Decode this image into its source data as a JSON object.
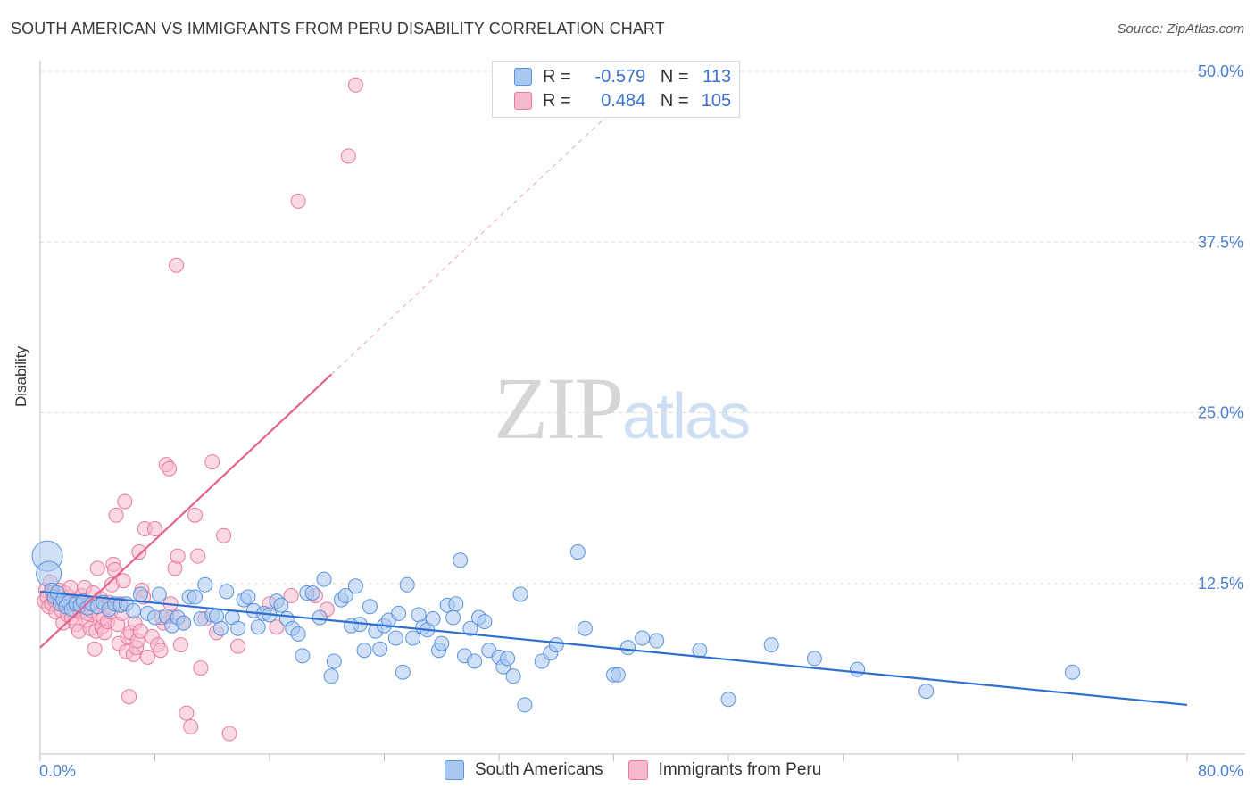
{
  "title": "SOUTH AMERICAN VS IMMIGRANTS FROM PERU DISABILITY CORRELATION CHART",
  "source": "Source: ZipAtlas.com",
  "watermark": {
    "zip": "ZIP",
    "atlas": "atlas"
  },
  "legend_top": {
    "rows": [
      {
        "r_label": "R =",
        "r_value": "-0.579",
        "n_label": "N =",
        "n_value": "113",
        "color": "#a9c8f0"
      },
      {
        "r_label": "R =",
        "r_value": "0.484",
        "n_label": "N =",
        "n_value": "105",
        "color": "#f7b9cc"
      }
    ]
  },
  "legend_bottom": [
    {
      "label": "South Americans",
      "color": "#a9c8f0"
    },
    {
      "label": "Immigrants from Peru",
      "color": "#f7b9cc"
    }
  ],
  "colors": {
    "blue_fill": "#a9c8f0",
    "blue_stroke": "#5b93dc",
    "blue_line": "#2f6fcf",
    "pink_fill": "#f7b9cc",
    "pink_stroke": "#e6799c",
    "pink_line": "#e4628d",
    "grid": "#dcdcdc",
    "axis_label": "#4a7fcf"
  },
  "chart_data": {
    "type": "scatter",
    "title": "SOUTH AMERICAN VS IMMIGRANTS FROM PERU DISABILITY CORRELATION CHART",
    "xlabel": "",
    "ylabel": "Disability",
    "xlim": [
      0,
      80
    ],
    "ylim": [
      0,
      50
    ],
    "x_tick_labels": [
      "0.0%",
      "80.0%"
    ],
    "y_tick_labels": [
      "12.5%",
      "25.0%",
      "37.5%",
      "50.0%"
    ],
    "y_ticks": [
      12.5,
      25,
      37.5,
      50
    ],
    "grid": true,
    "series": [
      {
        "name": "South Americans",
        "r": -0.579,
        "n": 113,
        "trend": {
          "x": [
            0,
            80
          ],
          "y": [
            11.9,
            3.6
          ]
        },
        "points": [
          [
            0.5,
            14.5
          ],
          [
            0.6,
            13.2
          ],
          [
            0.8,
            12.0
          ],
          [
            1.0,
            11.5
          ],
          [
            1.2,
            11.8
          ],
          [
            1.4,
            11.0
          ],
          [
            1.6,
            11.3
          ],
          [
            1.8,
            10.8
          ],
          [
            2.0,
            11.1
          ],
          [
            2.2,
            10.6
          ],
          [
            2.5,
            11.0
          ],
          [
            2.8,
            10.9
          ],
          [
            3.0,
            11.2
          ],
          [
            3.3,
            10.7
          ],
          [
            3.6,
            11.0
          ],
          [
            4.0,
            10.8
          ],
          [
            4.4,
            11.1
          ],
          [
            4.8,
            10.6
          ],
          [
            5.2,
            11.0
          ],
          [
            5.6,
            10.9
          ],
          [
            6.0,
            11.0
          ],
          [
            6.5,
            10.5
          ],
          [
            7.0,
            11.7
          ],
          [
            7.5,
            10.3
          ],
          [
            8.0,
            10.0
          ],
          [
            8.3,
            11.7
          ],
          [
            8.8,
            10.1
          ],
          [
            9.2,
            9.4
          ],
          [
            9.6,
            10.0
          ],
          [
            10.0,
            9.6
          ],
          [
            10.4,
            11.5
          ],
          [
            10.8,
            11.5
          ],
          [
            11.2,
            9.9
          ],
          [
            11.5,
            12.4
          ],
          [
            12.0,
            10.2
          ],
          [
            12.3,
            10.1
          ],
          [
            12.6,
            9.2
          ],
          [
            13.0,
            11.9
          ],
          [
            13.4,
            10.0
          ],
          [
            13.8,
            9.2
          ],
          [
            14.2,
            11.3
          ],
          [
            14.5,
            11.5
          ],
          [
            14.9,
            10.5
          ],
          [
            15.2,
            9.3
          ],
          [
            15.6,
            10.3
          ],
          [
            16.0,
            10.2
          ],
          [
            16.5,
            11.2
          ],
          [
            16.8,
            10.9
          ],
          [
            17.2,
            9.9
          ],
          [
            17.6,
            9.2
          ],
          [
            18.0,
            8.8
          ],
          [
            18.3,
            7.2
          ],
          [
            18.6,
            11.8
          ],
          [
            19.0,
            11.8
          ],
          [
            19.5,
            10.0
          ],
          [
            19.8,
            12.8
          ],
          [
            20.3,
            5.7
          ],
          [
            20.5,
            6.8
          ],
          [
            21.0,
            11.3
          ],
          [
            21.3,
            11.6
          ],
          [
            21.7,
            9.4
          ],
          [
            22.0,
            12.3
          ],
          [
            22.3,
            9.5
          ],
          [
            22.6,
            7.6
          ],
          [
            23.0,
            10.8
          ],
          [
            23.4,
            9.0
          ],
          [
            23.7,
            7.7
          ],
          [
            24.0,
            9.4
          ],
          [
            24.3,
            9.8
          ],
          [
            24.8,
            8.5
          ],
          [
            25.0,
            10.3
          ],
          [
            25.3,
            6.0
          ],
          [
            25.6,
            12.4
          ],
          [
            26.0,
            8.5
          ],
          [
            26.4,
            10.2
          ],
          [
            26.7,
            9.3
          ],
          [
            27.0,
            9.1
          ],
          [
            27.4,
            9.9
          ],
          [
            27.8,
            7.6
          ],
          [
            28.0,
            8.1
          ],
          [
            28.4,
            10.9
          ],
          [
            28.8,
            10.0
          ],
          [
            29.0,
            11.0
          ],
          [
            29.3,
            14.2
          ],
          [
            29.6,
            7.2
          ],
          [
            30.0,
            9.2
          ],
          [
            30.3,
            6.8
          ],
          [
            30.6,
            10.0
          ],
          [
            31.0,
            9.7
          ],
          [
            31.3,
            7.6
          ],
          [
            32.0,
            7.1
          ],
          [
            32.3,
            6.4
          ],
          [
            32.6,
            7.0
          ],
          [
            33.0,
            5.7
          ],
          [
            33.5,
            11.7
          ],
          [
            33.8,
            3.6
          ],
          [
            35.0,
            6.8
          ],
          [
            35.6,
            7.4
          ],
          [
            36.0,
            8.0
          ],
          [
            37.5,
            14.8
          ],
          [
            38.0,
            9.2
          ],
          [
            40.0,
            5.8
          ],
          [
            40.3,
            5.8
          ],
          [
            41.0,
            7.8
          ],
          [
            42.0,
            8.5
          ],
          [
            43.0,
            8.3
          ],
          [
            46.0,
            7.6
          ],
          [
            48.0,
            4.0
          ],
          [
            51.0,
            8.0
          ],
          [
            54.0,
            7.0
          ],
          [
            57.0,
            6.2
          ],
          [
            61.8,
            4.6
          ],
          [
            72.0,
            6.0
          ]
        ]
      },
      {
        "name": "Immigrants from Peru",
        "r": 0.484,
        "n": 105,
        "trend": {
          "x": [
            0,
            20.3
          ],
          "y": [
            7.8,
            27.8
          ]
        },
        "trend_extended": {
          "x": [
            20.3,
            39.5
          ],
          "y": [
            27.8,
            46.7
          ]
        },
        "points": [
          [
            0.3,
            11.2
          ],
          [
            0.4,
            12.0
          ],
          [
            0.5,
            11.5
          ],
          [
            0.6,
            10.8
          ],
          [
            0.7,
            12.6
          ],
          [
            0.8,
            11.0
          ],
          [
            0.9,
            11.8
          ],
          [
            1.0,
            11.3
          ],
          [
            1.1,
            10.4
          ],
          [
            1.2,
            11.6
          ],
          [
            1.3,
            12.0
          ],
          [
            1.4,
            11.2
          ],
          [
            1.5,
            10.5
          ],
          [
            1.6,
            9.6
          ],
          [
            1.7,
            11.8
          ],
          [
            1.8,
            11.0
          ],
          [
            1.9,
            10.2
          ],
          [
            2.0,
            11.5
          ],
          [
            2.1,
            12.2
          ],
          [
            2.2,
            10.0
          ],
          [
            2.3,
            11.0
          ],
          [
            2.4,
            10.6
          ],
          [
            2.5,
            9.5
          ],
          [
            2.6,
            11.3
          ],
          [
            2.7,
            9.0
          ],
          [
            2.8,
            10.4
          ],
          [
            2.9,
            11.6
          ],
          [
            3.0,
            10.8
          ],
          [
            3.1,
            12.2
          ],
          [
            3.2,
            9.8
          ],
          [
            3.3,
            10.3
          ],
          [
            3.4,
            11.0
          ],
          [
            3.5,
            9.2
          ],
          [
            3.6,
            10.5
          ],
          [
            3.7,
            11.8
          ],
          [
            3.8,
            7.7
          ],
          [
            3.9,
            9.0
          ],
          [
            4.0,
            13.6
          ],
          [
            4.1,
            10.2
          ],
          [
            4.2,
            11.4
          ],
          [
            4.3,
            9.3
          ],
          [
            4.4,
            10.0
          ],
          [
            4.5,
            8.9
          ],
          [
            4.6,
            10.8
          ],
          [
            4.7,
            9.7
          ],
          [
            4.8,
            11.1
          ],
          [
            4.9,
            10.4
          ],
          [
            5.0,
            12.4
          ],
          [
            5.1,
            13.9
          ],
          [
            5.2,
            13.5
          ],
          [
            5.3,
            17.5
          ],
          [
            5.4,
            9.5
          ],
          [
            5.5,
            8.1
          ],
          [
            5.6,
            11.0
          ],
          [
            5.7,
            10.3
          ],
          [
            5.8,
            12.7
          ],
          [
            5.9,
            18.5
          ],
          [
            6.0,
            7.5
          ],
          [
            6.1,
            8.6
          ],
          [
            6.2,
            4.2
          ],
          [
            6.3,
            8.9
          ],
          [
            6.5,
            7.3
          ],
          [
            6.6,
            9.6
          ],
          [
            6.7,
            7.8
          ],
          [
            6.8,
            8.3
          ],
          [
            6.9,
            14.8
          ],
          [
            7.0,
            9.0
          ],
          [
            7.1,
            12.0
          ],
          [
            7.2,
            11.5
          ],
          [
            7.3,
            16.5
          ],
          [
            7.5,
            7.1
          ],
          [
            7.8,
            8.6
          ],
          [
            8.0,
            16.5
          ],
          [
            8.2,
            8.0
          ],
          [
            8.4,
            7.6
          ],
          [
            8.6,
            9.6
          ],
          [
            8.8,
            21.2
          ],
          [
            9.0,
            20.9
          ],
          [
            9.2,
            10.1
          ],
          [
            9.4,
            13.6
          ],
          [
            9.5,
            35.8
          ],
          [
            9.6,
            14.5
          ],
          [
            9.8,
            8.0
          ],
          [
            10.0,
            9.6
          ],
          [
            10.2,
            3.0
          ],
          [
            10.5,
            2.0
          ],
          [
            10.8,
            17.5
          ],
          [
            11.0,
            14.5
          ],
          [
            11.2,
            6.3
          ],
          [
            11.5,
            9.9
          ],
          [
            12.0,
            21.4
          ],
          [
            12.3,
            8.9
          ],
          [
            12.8,
            16.0
          ],
          [
            13.2,
            1.5
          ],
          [
            13.8,
            7.9
          ],
          [
            16.0,
            11.0
          ],
          [
            16.5,
            9.3
          ],
          [
            17.5,
            11.6
          ],
          [
            18.0,
            40.5
          ],
          [
            19.2,
            11.6
          ],
          [
            20.0,
            10.6
          ],
          [
            21.5,
            43.8
          ],
          [
            22.0,
            49.0
          ],
          [
            9.1,
            11.0
          ],
          [
            8.5,
            10.0
          ]
        ]
      }
    ]
  }
}
